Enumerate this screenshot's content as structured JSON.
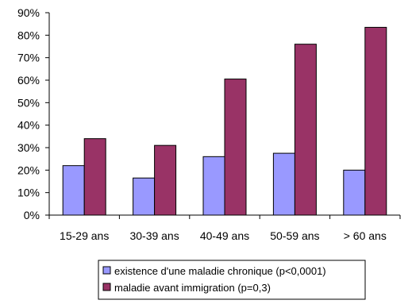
{
  "chart_data": {
    "type": "bar",
    "categories": [
      "15-29 ans",
      "30-39 ans",
      "40-49 ans",
      "50-59 ans",
      "> 60 ans"
    ],
    "series": [
      {
        "name": "existence d'une maladie chronique (p<0,0001)",
        "color": "#9999ff",
        "values": [
          22,
          16.5,
          26,
          27.5,
          20
        ]
      },
      {
        "name": "maladie avant immigration (p=0,3)",
        "color": "#993366",
        "values": [
          34,
          31,
          60.5,
          76,
          83.5
        ]
      }
    ],
    "ylim": [
      0,
      90
    ],
    "yticks": [
      0,
      10,
      20,
      30,
      40,
      50,
      60,
      70,
      80,
      90
    ],
    "ytick_labels": [
      "0%",
      "10%",
      "20%",
      "30%",
      "40%",
      "50%",
      "60%",
      "70%",
      "80%",
      "90%"
    ],
    "grid": false,
    "legend_position": "bottom",
    "title": "",
    "xlabel": "",
    "ylabel": ""
  }
}
